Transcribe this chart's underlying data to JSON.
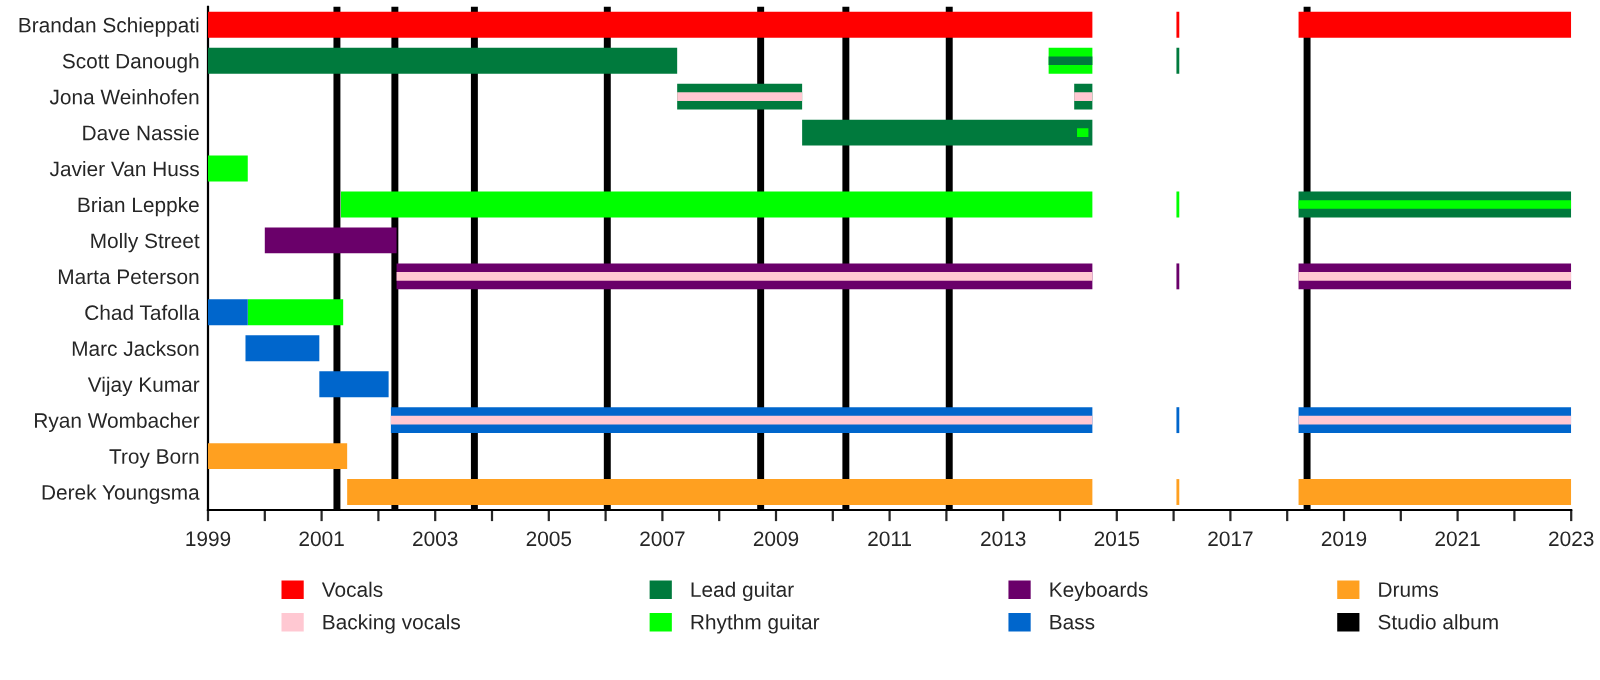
{
  "chart_data": {
    "type": "bar",
    "orientation": "horizontal",
    "categories": [
      "Brandan Schieppati",
      "Scott Danough",
      "Jona Weinhofen",
      "Dave Nassie",
      "Javier Van Huss",
      "Brian Leppke",
      "Molly Street",
      "Marta Peterson",
      "Chad Tafolla",
      "Marc Jackson",
      "Vijay Kumar",
      "Ryan Wombacher",
      "Troy Born",
      "Derek Youngsma"
    ],
    "series": [
      {
        "name": "Vocals",
        "color": "#ff0000",
        "values": [
          15.57,
          null,
          null,
          null,
          null,
          null,
          null,
          null,
          null,
          null,
          null,
          null,
          null,
          null
        ],
        "base": [
          1999,
          null,
          null,
          null,
          null,
          null,
          null,
          null,
          null,
          null,
          null,
          null,
          null,
          null
        ]
      },
      {
        "color": "#ff0000",
        "values": [
          0.05,
          null,
          null,
          null,
          null,
          null,
          null,
          null,
          null,
          null,
          null,
          null,
          null,
          null
        ],
        "base": [
          2016.05,
          null,
          null,
          null,
          null,
          null,
          null,
          null,
          null,
          null,
          null,
          null,
          null,
          null
        ]
      },
      {
        "color": "#ff0000",
        "values": [
          4.8,
          null,
          null,
          null,
          null,
          null,
          null,
          null,
          null,
          null,
          null,
          null,
          null,
          null
        ],
        "base": [
          2018.2,
          null,
          null,
          null,
          null,
          null,
          null,
          null,
          null,
          null,
          null,
          null,
          null,
          null
        ]
      },
      {
        "name": "Backing vocals",
        "color": "#ffc8d2",
        "values": [
          null,
          null,
          null,
          null,
          null,
          null,
          null,
          null,
          null,
          null,
          null,
          null,
          null,
          null
        ],
        "base": [
          null,
          null,
          null,
          null,
          null,
          null,
          null,
          null,
          null,
          null,
          null,
          null,
          null,
          null
        ]
      },
      {
        "name": "Lead guitar",
        "color": "#007a3d",
        "values": [
          null,
          8.26,
          2.2,
          5.11,
          null,
          null,
          null,
          null,
          null,
          null,
          null,
          null,
          null,
          null
        ],
        "base": [
          null,
          1999,
          2007.26,
          2009.46,
          null,
          null,
          null,
          null,
          null,
          null,
          null,
          null,
          null,
          null
        ]
      },
      {
        "color": "#007a3d",
        "values": [
          null,
          0.05,
          0.32,
          null,
          null,
          4.8,
          null,
          null,
          null,
          null,
          null,
          null,
          null,
          null
        ],
        "base": [
          null,
          2016.05,
          2014.25,
          null,
          null,
          2018.2,
          null,
          null,
          null,
          null,
          null,
          null,
          null,
          null
        ]
      },
      {
        "name": "Rhythm guitar",
        "color": "#00ff00",
        "values": [
          null,
          0.77,
          null,
          null,
          0.7,
          13.23,
          null,
          null,
          1.68,
          null,
          null,
          null,
          null,
          null
        ],
        "base": [
          null,
          2013.8,
          null,
          null,
          1999,
          2001.34,
          null,
          null,
          1999.7,
          null,
          null,
          null,
          null,
          null
        ]
      },
      {
        "color": "#00ff00",
        "values": [
          null,
          null,
          null,
          null,
          null,
          0.05,
          null,
          null,
          null,
          null,
          null,
          null,
          null,
          null
        ],
        "base": [
          null,
          null,
          null,
          null,
          null,
          2016.05,
          null,
          null,
          null,
          null,
          null,
          null,
          null,
          null
        ]
      },
      {
        "name": "Keyboards",
        "color": "#6a006a",
        "values": [
          null,
          null,
          null,
          null,
          null,
          null,
          2.32,
          12.25,
          null,
          null,
          null,
          null,
          null,
          null
        ],
        "base": [
          null,
          null,
          null,
          null,
          null,
          null,
          2000,
          2002.32,
          null,
          null,
          null,
          null,
          null,
          null
        ]
      },
      {
        "color": "#6a006a",
        "values": [
          null,
          null,
          null,
          null,
          null,
          null,
          null,
          0.05,
          null,
          null,
          null,
          null,
          null,
          null
        ],
        "base": [
          null,
          null,
          null,
          null,
          null,
          null,
          null,
          2016.05,
          null,
          null,
          null,
          null,
          null,
          null
        ]
      },
      {
        "color": "#6a006a",
        "values": [
          null,
          null,
          null,
          null,
          null,
          null,
          null,
          4.8,
          null,
          null,
          null,
          null,
          null,
          null
        ],
        "base": [
          null,
          null,
          null,
          null,
          null,
          null,
          null,
          2018.2,
          null,
          null,
          null,
          null,
          null,
          null
        ]
      },
      {
        "name": "Bass",
        "color": "#0066cc",
        "values": [
          null,
          null,
          null,
          null,
          null,
          null,
          null,
          null,
          0.7,
          1.3,
          1.22,
          12.35,
          null,
          null
        ],
        "base": [
          null,
          null,
          null,
          null,
          null,
          null,
          null,
          null,
          1999,
          1999.66,
          2000.96,
          2002.22,
          null,
          null
        ]
      },
      {
        "color": "#0066cc",
        "values": [
          null,
          null,
          null,
          null,
          null,
          null,
          null,
          null,
          null,
          null,
          null,
          0.05,
          null,
          null
        ],
        "base": [
          null,
          null,
          null,
          null,
          null,
          null,
          null,
          null,
          null,
          null,
          null,
          2016.05,
          null,
          null
        ]
      },
      {
        "color": "#0066cc",
        "values": [
          null,
          null,
          null,
          null,
          null,
          null,
          null,
          null,
          null,
          null,
          null,
          4.8,
          null,
          null
        ],
        "base": [
          null,
          null,
          null,
          null,
          null,
          null,
          null,
          null,
          null,
          null,
          null,
          2018.2,
          null,
          null
        ]
      },
      {
        "name": "Drums",
        "color": "#ffa020",
        "values": [
          null,
          null,
          null,
          null,
          null,
          null,
          null,
          null,
          null,
          null,
          null,
          null,
          2.45,
          13.12
        ],
        "base": [
          null,
          null,
          null,
          null,
          null,
          null,
          null,
          null,
          null,
          null,
          null,
          null,
          1999,
          2001.45
        ]
      },
      {
        "color": "#ffa020",
        "values": [
          null,
          null,
          null,
          null,
          null,
          null,
          null,
          null,
          null,
          null,
          null,
          null,
          null,
          0.05
        ],
        "base": [
          null,
          null,
          null,
          null,
          null,
          null,
          null,
          null,
          null,
          null,
          null,
          null,
          null,
          2016.05
        ]
      },
      {
        "color": "#ffa020",
        "values": [
          null,
          null,
          null,
          null,
          null,
          null,
          null,
          null,
          null,
          null,
          null,
          null,
          null,
          4.8
        ],
        "base": [
          null,
          null,
          null,
          null,
          null,
          null,
          null,
          null,
          null,
          null,
          null,
          null,
          null,
          2018.2
        ]
      },
      {
        "color": "#007a3d",
        "values": [
          null,
          0.77,
          null,
          null,
          null,
          null,
          null,
          null,
          null,
          null,
          null,
          null,
          null,
          null
        ],
        "base": [
          null,
          2013.8,
          null,
          null,
          null,
          null,
          null,
          null,
          null,
          null,
          null,
          null,
          null,
          null
        ]
      },
      {
        "color": "#00ff00",
        "values": [
          null,
          null,
          null,
          0.2,
          null,
          4.8,
          null,
          null,
          null,
          null,
          null,
          null,
          null,
          null
        ],
        "base": [
          null,
          null,
          null,
          2014.3,
          null,
          2018.2,
          null,
          null,
          null,
          null,
          null,
          null,
          null,
          null
        ]
      },
      {
        "color": "#ffc8d2",
        "values": [
          null,
          null,
          2.2,
          null,
          null,
          null,
          null,
          12.25,
          null,
          null,
          null,
          12.35,
          null,
          null
        ],
        "base": [
          null,
          null,
          2007.26,
          null,
          null,
          null,
          null,
          2002.32,
          null,
          null,
          null,
          2002.22,
          null,
          null
        ]
      },
      {
        "color": "#ffc8d2",
        "values": [
          null,
          null,
          0.32,
          null,
          null,
          null,
          null,
          4.8,
          null,
          null,
          null,
          4.8,
          null,
          null
        ],
        "base": [
          null,
          null,
          2014.25,
          null,
          null,
          null,
          null,
          2018.2,
          null,
          null,
          null,
          2018.2,
          null,
          null
        ]
      }
    ],
    "ref_lines": [
      {
        "axis": "x",
        "value": 2001.27,
        "label": "Studio album",
        "color": "#000000"
      },
      {
        "axis": "x",
        "value": 2002.29,
        "color": "#000000"
      },
      {
        "axis": "x",
        "value": 2003.69,
        "color": "#000000"
      },
      {
        "axis": "x",
        "value": 2006.03,
        "color": "#000000"
      },
      {
        "axis": "x",
        "value": 2008.73,
        "color": "#000000"
      },
      {
        "axis": "x",
        "value": 2010.23,
        "color": "#000000"
      },
      {
        "axis": "x",
        "value": 2012.05,
        "color": "#000000"
      },
      {
        "axis": "x",
        "value": 2018.35,
        "color": "#000000"
      }
    ],
    "xlim": [
      1999,
      2023
    ],
    "xticks": [
      1999,
      {
        "value": 2000,
        "label": null
      },
      2001,
      {
        "value": 2002,
        "label": null
      },
      2003,
      {
        "value": 2004,
        "label": null
      },
      2005,
      {
        "value": 2006,
        "label": null
      },
      2007,
      {
        "value": 2008,
        "label": null
      },
      2009,
      {
        "value": 2010,
        "label": null
      },
      2011,
      {
        "value": 2012,
        "label": null
      },
      2013,
      {
        "value": 2014,
        "label": null
      },
      2015,
      {
        "value": 2016,
        "label": null
      },
      2017,
      {
        "value": 2018,
        "label": null
      },
      2019,
      {
        "value": 2020,
        "label": null
      },
      2021,
      {
        "value": 2022,
        "label": null
      },
      2023
    ],
    "grid": false,
    "legend": "bottom"
  }
}
